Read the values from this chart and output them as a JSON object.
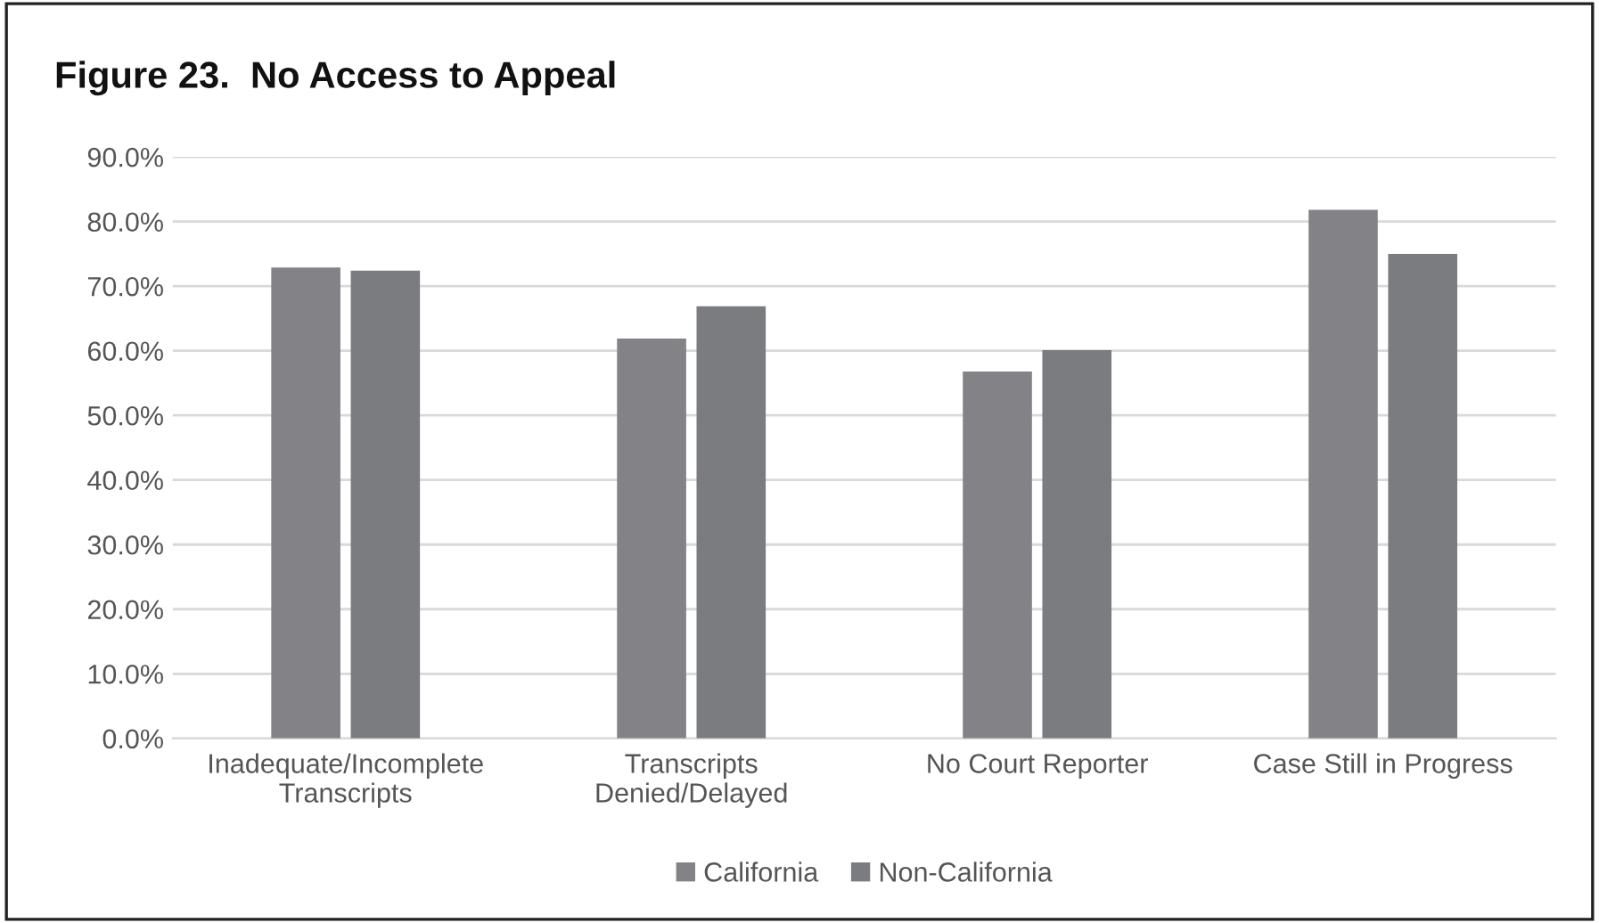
{
  "chart_data": {
    "type": "bar",
    "title": "Figure 23.  No Access to Appeal",
    "categories": [
      "Inadequate/Incomplete\nTranscripts",
      "Transcripts\nDenied/Delayed",
      "No Court Reporter",
      "Case Still in Progress"
    ],
    "series": [
      {
        "name": "California",
        "color": "#838387",
        "values": [
          72.9,
          61.9,
          56.8,
          81.8
        ]
      },
      {
        "name": "Non-California",
        "color": "#7b7c80",
        "values": [
          72.4,
          66.9,
          60.1,
          75.0
        ]
      }
    ],
    "ylim": [
      0,
      90
    ],
    "yticks": [
      {
        "value": 0,
        "label": "0.0%"
      },
      {
        "value": 10,
        "label": "10.0%"
      },
      {
        "value": 20,
        "label": "20.0%"
      },
      {
        "value": 30,
        "label": "30.0%"
      },
      {
        "value": 40,
        "label": "40.0%"
      },
      {
        "value": 50,
        "label": "50.0%"
      },
      {
        "value": 60,
        "label": "60.0%"
      },
      {
        "value": 70,
        "label": "70.0%"
      },
      {
        "value": 80,
        "label": "80.0%"
      },
      {
        "value": 90,
        "label": "90.0%"
      }
    ],
    "grid": "y",
    "legend": "bottom"
  }
}
